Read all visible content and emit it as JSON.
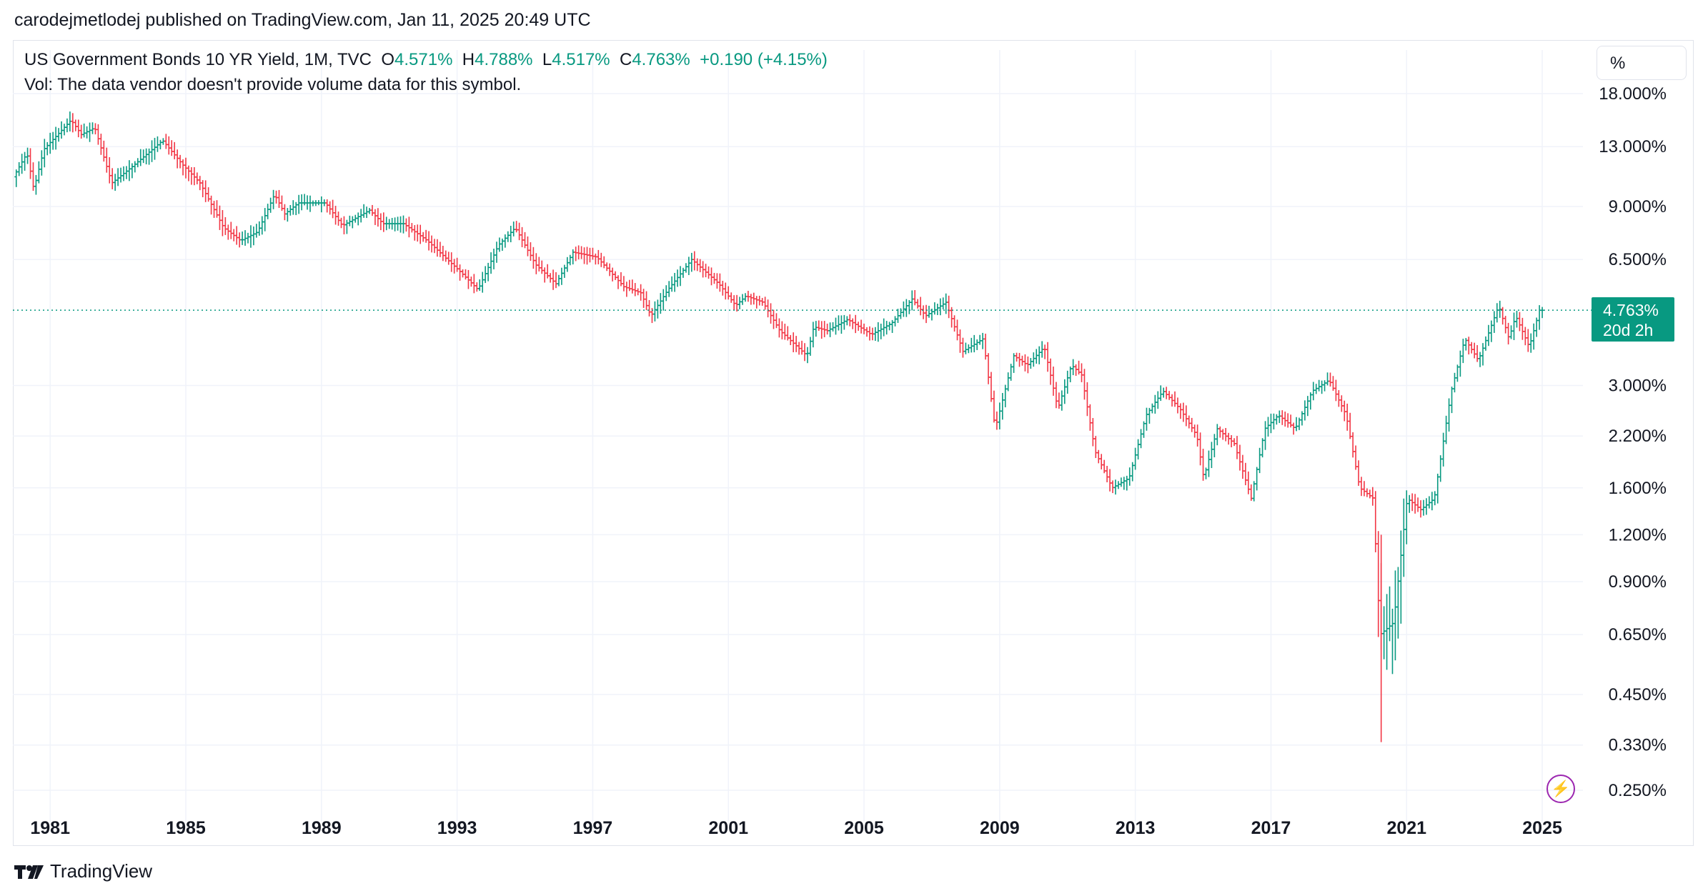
{
  "published_line": "carodejmetlodej published on TradingView.com, Jan 11, 2025 20:49 UTC",
  "legend": {
    "title": "US Government Bonds 10 YR Yield, 1M, TVC",
    "o_label": "O",
    "o_value": "4.571%",
    "h_label": "H",
    "h_value": "4.788%",
    "l_label": "L",
    "l_value": "4.517%",
    "c_label": "C",
    "c_value": "4.763%",
    "change": "+0.190 (+4.15%)",
    "vol_note": "Vol: The data vendor doesn't provide volume data for this symbol."
  },
  "scale_button": "%",
  "price_badge": {
    "price": "4.763%",
    "countdown": "20d 2h"
  },
  "brand": "TradingView",
  "icons": {
    "brand_logo": "tradingview-logo-icon",
    "lightning": "lightning-icon"
  },
  "colors": {
    "up": "#089981",
    "down": "#f23645",
    "grid": "#f0f3fa",
    "accent": "#9c27b0"
  },
  "chart_data": {
    "type": "ohlc",
    "series_name": "US Government Bonds 10 YR Yield",
    "interval": "1M",
    "y_scale": "log",
    "y_ticks": [
      {
        "value": 18.0,
        "label": "18.000%"
      },
      {
        "value": 13.0,
        "label": "13.000%"
      },
      {
        "value": 9.0,
        "label": "9.000%"
      },
      {
        "value": 6.5,
        "label": "6.500%"
      },
      {
        "value": 3.0,
        "label": "3.000%"
      },
      {
        "value": 2.2,
        "label": "2.200%"
      },
      {
        "value": 1.6,
        "label": "1.600%"
      },
      {
        "value": 1.2,
        "label": "1.200%"
      },
      {
        "value": 0.9,
        "label": "0.900%"
      },
      {
        "value": 0.65,
        "label": "0.650%"
      },
      {
        "value": 0.45,
        "label": "0.450%"
      },
      {
        "value": 0.33,
        "label": "0.330%"
      },
      {
        "value": 0.25,
        "label": "0.250%"
      }
    ],
    "x_ticks": [
      "1981",
      "1985",
      "1989",
      "1993",
      "1997",
      "2001",
      "2005",
      "2009",
      "2013",
      "2017",
      "2021",
      "2025"
    ],
    "x_range": [
      1979.9,
      2026.2
    ],
    "last_price": 4.763,
    "grid": true,
    "anchors": [
      [
        1980.0,
        10.8
      ],
      [
        1980.4,
        12.5
      ],
      [
        1980.6,
        10.0
      ],
      [
        1980.9,
        12.8
      ],
      [
        1981.7,
        15.3
      ],
      [
        1982.0,
        14.0
      ],
      [
        1982.4,
        14.6
      ],
      [
        1982.9,
        10.4
      ],
      [
        1983.5,
        11.5
      ],
      [
        1984.4,
        13.5
      ],
      [
        1985.0,
        11.6
      ],
      [
        1985.5,
        10.4
      ],
      [
        1986.2,
        7.9
      ],
      [
        1986.7,
        7.3
      ],
      [
        1987.2,
        7.7
      ],
      [
        1987.7,
        9.7
      ],
      [
        1988.0,
        8.6
      ],
      [
        1988.4,
        9.2
      ],
      [
        1989.2,
        9.2
      ],
      [
        1989.7,
        8.0
      ],
      [
        1990.5,
        8.8
      ],
      [
        1990.9,
        8.1
      ],
      [
        1991.5,
        8.1
      ],
      [
        1992.2,
        7.3
      ],
      [
        1993.2,
        6.0
      ],
      [
        1993.7,
        5.4
      ],
      [
        1994.3,
        7.1
      ],
      [
        1994.8,
        7.9
      ],
      [
        1995.4,
        6.3
      ],
      [
        1996.0,
        5.6
      ],
      [
        1996.5,
        6.8
      ],
      [
        1997.2,
        6.6
      ],
      [
        1998.0,
        5.5
      ],
      [
        1998.5,
        5.3
      ],
      [
        1998.8,
        4.6
      ],
      [
        1999.3,
        5.4
      ],
      [
        2000.0,
        6.5
      ],
      [
        2000.8,
        5.6
      ],
      [
        2001.3,
        4.9
      ],
      [
        2001.6,
        5.2
      ],
      [
        2002.1,
        5.0
      ],
      [
        2002.6,
        4.2
      ],
      [
        2003.4,
        3.6
      ],
      [
        2003.6,
        4.3
      ],
      [
        2004.0,
        4.2
      ],
      [
        2004.6,
        4.5
      ],
      [
        2005.3,
        4.1
      ],
      [
        2005.9,
        4.4
      ],
      [
        2006.5,
        5.1
      ],
      [
        2006.9,
        4.6
      ],
      [
        2007.5,
        5.0
      ],
      [
        2008.0,
        3.7
      ],
      [
        2008.6,
        4.0
      ],
      [
        2008.95,
        2.3
      ],
      [
        2009.5,
        3.6
      ],
      [
        2009.9,
        3.4
      ],
      [
        2010.4,
        3.8
      ],
      [
        2010.8,
        2.6
      ],
      [
        2011.2,
        3.4
      ],
      [
        2011.5,
        3.2
      ],
      [
        2011.9,
        2.0
      ],
      [
        2012.4,
        1.6
      ],
      [
        2012.9,
        1.7
      ],
      [
        2013.4,
        2.5
      ],
      [
        2013.9,
        2.9
      ],
      [
        2014.4,
        2.6
      ],
      [
        2014.9,
        2.2
      ],
      [
        2015.1,
        1.7
      ],
      [
        2015.5,
        2.3
      ],
      [
        2016.0,
        2.1
      ],
      [
        2016.5,
        1.5
      ],
      [
        2016.9,
        2.3
      ],
      [
        2017.3,
        2.5
      ],
      [
        2017.8,
        2.3
      ],
      [
        2018.3,
        2.9
      ],
      [
        2018.8,
        3.1
      ],
      [
        2019.3,
        2.5
      ],
      [
        2019.7,
        1.6
      ],
      [
        2020.1,
        1.5
      ],
      [
        2020.3,
        0.65
      ],
      [
        2020.7,
        0.7
      ],
      [
        2021.1,
        1.5
      ],
      [
        2021.5,
        1.4
      ],
      [
        2021.9,
        1.5
      ],
      [
        2022.4,
        2.9
      ],
      [
        2022.8,
        4.0
      ],
      [
        2023.2,
        3.5
      ],
      [
        2023.8,
        4.9
      ],
      [
        2024.1,
        4.0
      ],
      [
        2024.3,
        4.6
      ],
      [
        2024.7,
        3.8
      ],
      [
        2025.0,
        4.76
      ]
    ]
  }
}
